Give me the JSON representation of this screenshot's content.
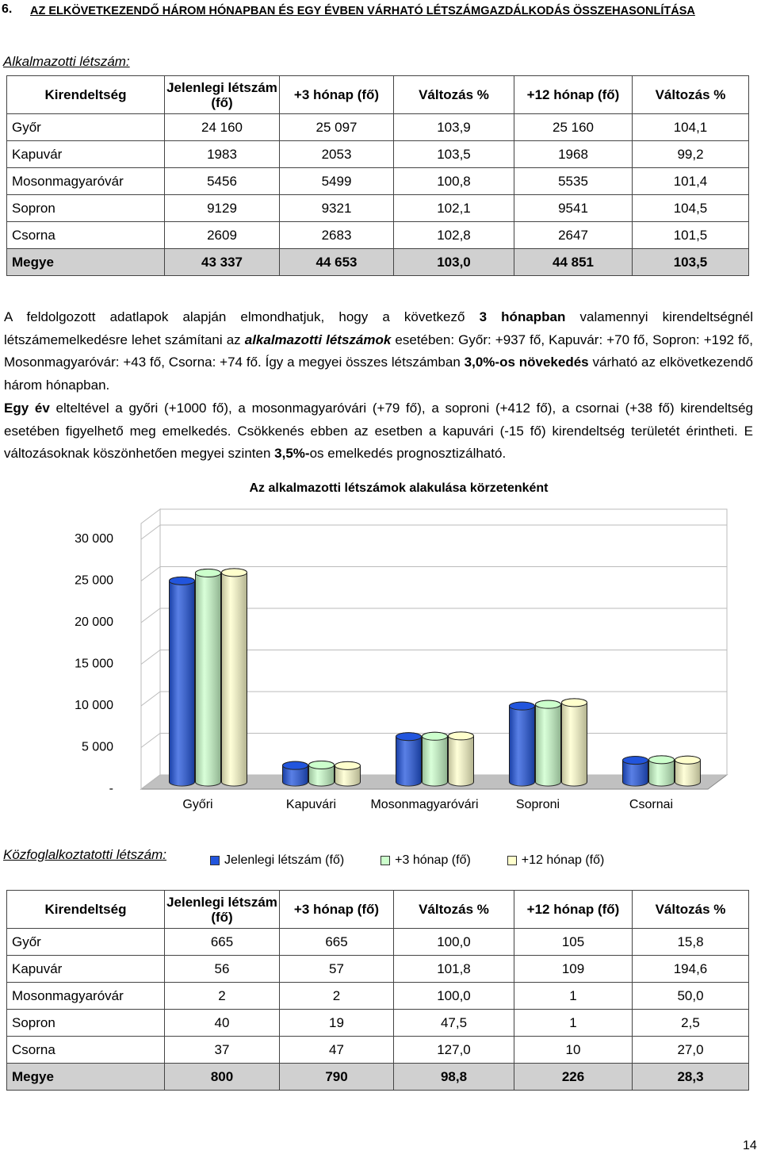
{
  "heading": {
    "number": "6.",
    "title": "AZ ELKÖVETKEZENDŐ HÁROM HÓNAPBAN ÉS EGY ÉVBEN VÁRHATÓ LÉTSZÁMGAZDÁLKODÁS ÖSSZEHASONLÍTÁSA"
  },
  "section1": "Alkalmazotti létszám:",
  "table1": {
    "header": [
      "Kirendeltség",
      "Jelenlegi létszám (fő)",
      "+3 hónap (fő)",
      "Változás %",
      "+12 hónap (fő)",
      "Változás %"
    ],
    "rows": [
      [
        "Győr",
        "24 160",
        "25 097",
        "103,9",
        "25 160",
        "104,1"
      ],
      [
        "Kapuvár",
        "1983",
        "2053",
        "103,5",
        "1968",
        "99,2"
      ],
      [
        "Mosonmagyaróvár",
        "5456",
        "5499",
        "100,8",
        "5535",
        "101,4"
      ],
      [
        "Sopron",
        "9129",
        "9321",
        "102,1",
        "9541",
        "104,5"
      ],
      [
        "Csorna",
        "2609",
        "2683",
        "102,8",
        "2647",
        "101,5"
      ],
      [
        "Megye",
        "43 337",
        "44 653",
        "103,0",
        "44 851",
        "103,5"
      ]
    ]
  },
  "paragraphs": [
    [
      "A feldolgozott adatlapok alapján elmondhatjuk, hogy a következő ",
      "3 hónapban",
      " valamennyi kirendeltségnél létszámemelkedésre lehet számítani az ",
      "alkalmazotti létszámok",
      " esetében: Győr: +937 fő, Kapuvár: +70 fő, Sopron: +192 fő, Mosonmagyaróvár: +43 fő, Csorna: +74 fő. Így a megyei összes létszámban ",
      "3,0%-os növekedés",
      " várható az elkövetkezendő három hónapban."
    ],
    [
      "Egy év",
      " elteltével a győri (+1000 fő), a mosonmagyaróvári (+79 fő), a soproni (+412 fő), a csornai (+38 fő) kirendeltség esetében figyelhető meg emelkedés. Csökkenés ebben az esetben a kapuvári (-15 fő) kirendeltség területét érintheti. E változásoknak köszönhetően megyei szinten ",
      "3,5%-",
      "os emelkedés prognosztizálható."
    ]
  ],
  "chart_data": {
    "type": "bar",
    "title": "Az alkalmazotti létszámok alakulása körzetenként",
    "categories": [
      "Győri",
      "Kapuvári",
      "Mosonmagyaróvári",
      "Soproni",
      "Csornai"
    ],
    "series": [
      {
        "name": "Jelenlegi létszám (fő)",
        "color": "#2255dd",
        "values": [
          24160,
          1983,
          5456,
          9129,
          2609
        ]
      },
      {
        "name": "+3 hónap (fő)",
        "color": "#ccffcc",
        "values": [
          25097,
          2053,
          5499,
          9321,
          2683
        ]
      },
      {
        "name": "+12 hónap (fő)",
        "color": "#ffffcc",
        "values": [
          25160,
          1968,
          5535,
          9541,
          2647
        ]
      }
    ],
    "ylim": [
      0,
      30000
    ],
    "yticks": [
      {
        "value": 0,
        "label": "-"
      },
      {
        "value": 5000,
        "label": "5 000"
      },
      {
        "value": 10000,
        "label": "10 000"
      },
      {
        "value": 15000,
        "label": "15 000"
      },
      {
        "value": 20000,
        "label": "20 000"
      },
      {
        "value": 25000,
        "label": "25 000"
      },
      {
        "value": 30000,
        "label": "30 000"
      }
    ],
    "grid": true
  },
  "section2": "Közfoglalkoztatotti létszám:",
  "table2": {
    "header": [
      "Kirendeltség",
      "Jelenlegi létszám (fő)",
      "+3 hónap (fő)",
      "Változás %",
      "+12 hónap (fő)",
      "Változás %"
    ],
    "rows": [
      [
        "Győr",
        "665",
        "665",
        "100,0",
        "105",
        "15,8"
      ],
      [
        "Kapuvár",
        "56",
        "57",
        "101,8",
        "109",
        "194,6"
      ],
      [
        "Mosonmagyaróvár",
        "2",
        "2",
        "100,0",
        "1",
        "50,0"
      ],
      [
        "Sopron",
        "40",
        "19",
        "47,5",
        "1",
        "2,5"
      ],
      [
        "Csorna",
        "37",
        "47",
        "127,0",
        "10",
        "27,0"
      ],
      [
        "Megye",
        "800",
        "790",
        "98,8",
        "226",
        "28,3"
      ]
    ]
  },
  "page_number": "14"
}
